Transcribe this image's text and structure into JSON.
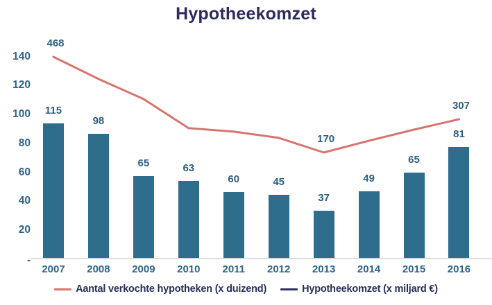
{
  "title": "Hypotheekomzet",
  "colors": {
    "bar": "#2F6D8D",
    "line": "#D9736D",
    "legend_line_1": "#D9736D",
    "legend_line_2": "#2F3061",
    "data_label": "#2D5F7F",
    "axis_label": "#2D6489",
    "title_text": "#2D2A5E",
    "legend_text": "#2A2D5C",
    "baseline": "#DBDBDB"
  },
  "y_axis": {
    "ticks": [
      {
        "label": "140",
        "value": 140
      },
      {
        "label": "120",
        "value": 120
      },
      {
        "label": "100",
        "value": 100
      },
      {
        "label": "80",
        "value": 80
      },
      {
        "label": "60",
        "value": 60
      },
      {
        "label": "40",
        "value": 40
      },
      {
        "label": "20",
        "value": 20
      },
      {
        "label": "-",
        "value": 0
      }
    ]
  },
  "legend": {
    "items": [
      {
        "label": "Aantal verkochte hypotheken (x duizend)",
        "swatch_color": "#D9736D"
      },
      {
        "label": "Hypotheekomzet (x miljard €)",
        "swatch_color": "#2F3061"
      }
    ]
  },
  "chart_data": {
    "type": "bar+line",
    "title": "Hypotheekomzet",
    "xlabel": "",
    "ylabel": "",
    "categories": [
      "2007",
      "2008",
      "2009",
      "2010",
      "2011",
      "2012",
      "2013",
      "2014",
      "2015",
      "2016"
    ],
    "series": [
      {
        "name": "Hypotheekomzet (x miljard €)",
        "type": "bar",
        "color": "#2F6D8D",
        "values": [
          115,
          98,
          65,
          63,
          60,
          45,
          37,
          49,
          65,
          81
        ],
        "plotted_left_axis_values": [
          93,
          85.5,
          56.5,
          53.2,
          45.5,
          43.6,
          32.6,
          46,
          58.9,
          76.6
        ]
      },
      {
        "name": "Aantal verkochte hypotheken (x duizend)",
        "type": "line",
        "color": "#D9736D",
        "labeled_points": [
          {
            "category": "2007",
            "value": 468
          },
          {
            "category": "2013",
            "value": 170
          },
          {
            "category": "2016",
            "value": 307
          }
        ],
        "plotted_left_axis_values": [
          138.9,
          123.6,
          109.7,
          89.6,
          87.2,
          82.9,
          72.8,
          80.9,
          88.6,
          95.8
        ]
      }
    ],
    "ylim": [
      0,
      150
    ],
    "yticks": [
      0,
      20,
      40,
      60,
      80,
      100,
      120,
      140
    ],
    "grid": false,
    "legend_position": "bottom"
  }
}
